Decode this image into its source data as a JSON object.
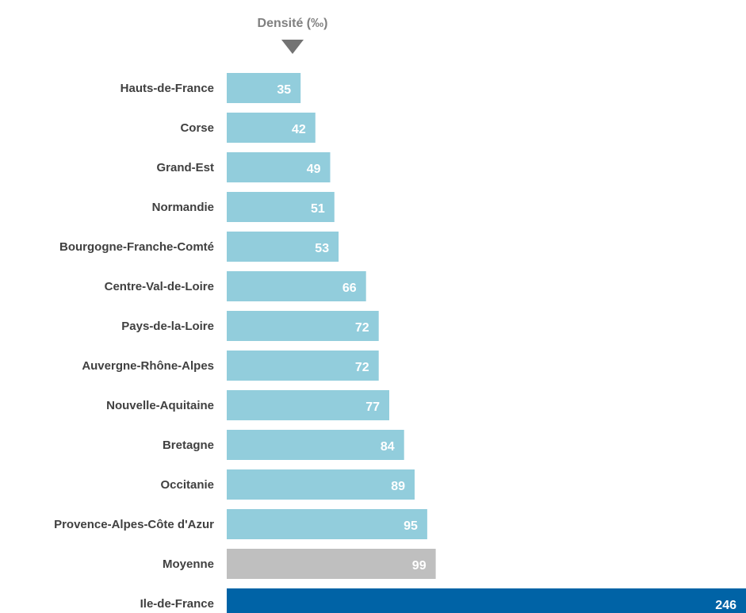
{
  "chart_data": {
    "type": "bar",
    "orientation": "horizontal",
    "title": "Densité (‰)",
    "sort_indicator_icon": "triangle-down-icon",
    "categories": [
      "Hauts-de-France",
      "Corse",
      "Grand-Est",
      "Normandie",
      "Bourgogne-Franche-Comté",
      "Centre-Val-de-Loire",
      "Pays-de-la-Loire",
      "Auvergne-Rhône-Alpes",
      "Nouvelle-Aquitaine",
      "Bretagne",
      "Occitanie",
      "Provence-Alpes-Côte d'Azur",
      "Moyenne",
      "Ile-de-France"
    ],
    "values": [
      35,
      42,
      49,
      51,
      53,
      66,
      72,
      72,
      77,
      84,
      89,
      95,
      99,
      246
    ],
    "value_labels": [
      "35",
      "42",
      "49",
      "51",
      "53",
      "66",
      "72",
      "72",
      "77",
      "84",
      "89",
      "95",
      "99",
      "246"
    ],
    "colors": [
      "#92cddc",
      "#92cddc",
      "#92cddc",
      "#92cddc",
      "#92cddc",
      "#92cddc",
      "#92cddc",
      "#92cddc",
      "#92cddc",
      "#92cddc",
      "#92cddc",
      "#92cddc",
      "#bfbfbf",
      "#0063a6"
    ],
    "default_color": "#92cddc",
    "average_color": "#bfbfbf",
    "highlight_color": "#0063a6",
    "xlim": [
      0,
      246
    ],
    "grid": false,
    "legend": "none",
    "xlabel": "",
    "ylabel": ""
  }
}
